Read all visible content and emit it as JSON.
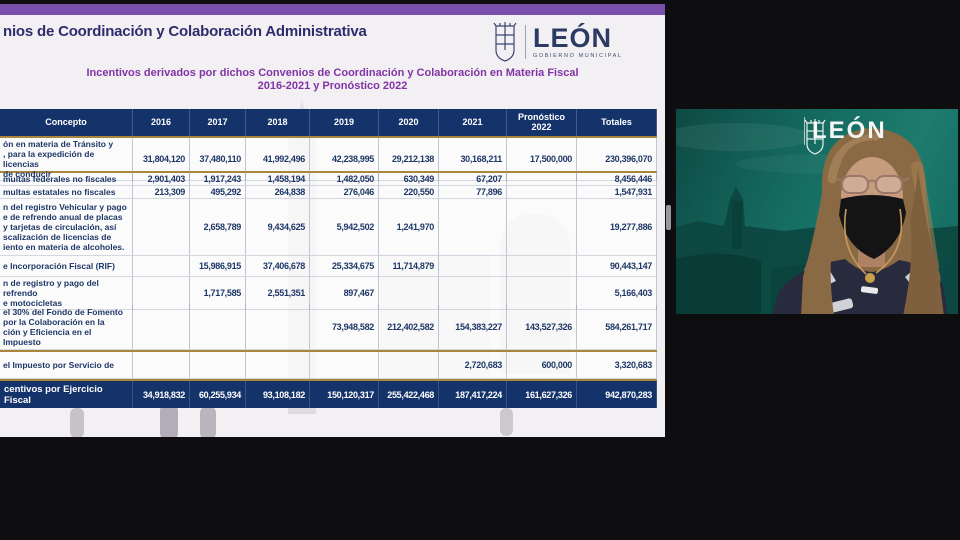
{
  "window": {
    "background_color": "#0e0e10"
  },
  "slide": {
    "title": "nios de Coordinación y Colaboración Administrativa",
    "subtitle_line1": "Incentivos derivados por dichos Convenios de Coordinación y Colaboración en Materia Fiscal",
    "subtitle_line2": "2016-2021 y Pronóstico 2022",
    "logo": {
      "text": "LEÓN",
      "subtext": "GOBIERNO MUNICIPAL"
    },
    "colors": {
      "band": "#7b50ad",
      "title_text": "#2e2c6e",
      "subtitle_text": "#8234a6",
      "header_bg": "#15336b",
      "gold_border": "#a8863c",
      "slide_bg": "#f2f0f2"
    }
  },
  "table": {
    "columns": [
      "Concepto",
      "2016",
      "2017",
      "2018",
      "2019",
      "2020",
      "2021",
      "Pronóstico 2022",
      "Totales"
    ],
    "rows": [
      {
        "concepto": "ón en materia de Tránsito y\n, para la expedición de licencias\nde conducir",
        "values": [
          "31,804,120",
          "37,480,110",
          "41,992,496",
          "42,238,995",
          "29,212,138",
          "30,168,211",
          "17,500,000",
          "230,396,070"
        ]
      },
      {
        "concepto": "multas federales no fiscales",
        "values": [
          "2,901,403",
          "1,917,243",
          "1,458,194",
          "1,482,050",
          "630,349",
          "67,207",
          "",
          "8,456,446"
        ]
      },
      {
        "concepto": "multas estatales no fiscales",
        "values": [
          "213,309",
          "495,292",
          "264,838",
          "276,046",
          "220,550",
          "77,896",
          "",
          "1,547,931"
        ]
      },
      {
        "concepto": "n del registro Vehicular y pago\ne de refrendo anual de placas\ny tarjetas de circulación, así\nscalización de licencias de\niento en materia de alcoholes.",
        "values": [
          "",
          "2,658,789",
          "9,434,625",
          "5,942,502",
          "1,241,970",
          "",
          "",
          "19,277,886"
        ]
      },
      {
        "concepto": "e Incorporación Fiscal (RIF)",
        "values": [
          "",
          "15,986,915",
          "37,406,678",
          "25,334,675",
          "11,714,879",
          "",
          "",
          "90,443,147"
        ]
      },
      {
        "concepto": "n de registro y pago del refrendo\ne motocicletas",
        "values": [
          "",
          "1,717,585",
          "2,551,351",
          "897,467",
          "",
          "",
          "",
          "5,166,403"
        ]
      },
      {
        "concepto": "el 30% del Fondo de Fomento\npor la Colaboración en la\nción y Eficiencia en el Impuesto",
        "values": [
          "",
          "",
          "",
          "73,948,582",
          "212,402,582",
          "154,383,227",
          "143,527,326",
          "584,261,717"
        ]
      },
      {
        "concepto": "el Impuesto por Servicio de",
        "values": [
          "",
          "",
          "",
          "",
          "",
          "2,720,683",
          "600,000",
          "3,320,683"
        ]
      }
    ],
    "footer": {
      "label": "centivos por Ejercicio Fiscal",
      "values": [
        "34,918,832",
        "60,255,934",
        "93,108,182",
        "150,120,317",
        "255,422,468",
        "187,417,224",
        "161,627,326",
        "942,870,283"
      ]
    }
  },
  "video": {
    "logo_text": "LEÓN",
    "background_color": "#156b60"
  }
}
